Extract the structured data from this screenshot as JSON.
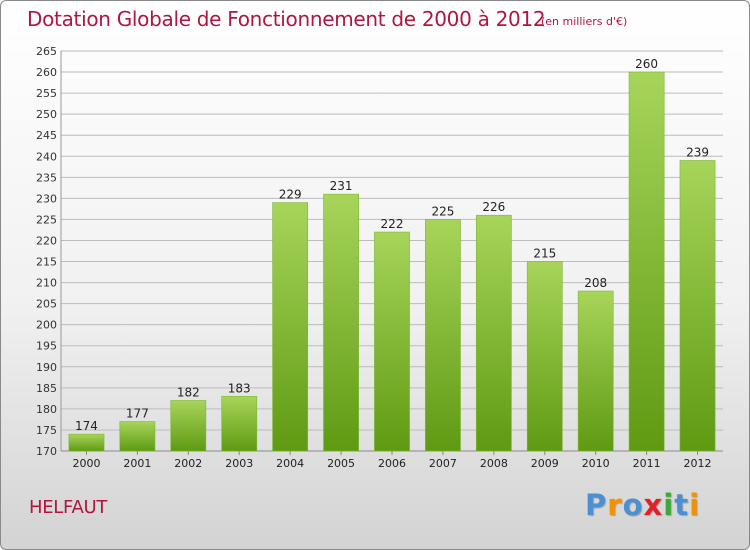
{
  "header": {
    "title": "Dotation Globale de Fonctionnement de 2000 à 2012",
    "unit": "(en milliers d'€)"
  },
  "footer": {
    "place": "HELFAUT",
    "logo_text": "Proxiti",
    "logo_colors": [
      "#4a90d2",
      "#f39200",
      "#4a90d2",
      "#e2202c",
      "#3aa935",
      "#4a90d2",
      "#f39200"
    ]
  },
  "colors": {
    "bar_light": "#a7d55a",
    "bar_dark": "#5f9a12",
    "grid": "#bcbcbc",
    "title": "#b0163f"
  },
  "chart_data": {
    "type": "bar",
    "title": "Dotation Globale de Fonctionnement de 2000 à 2012",
    "subtitle": "(en milliers d'€)",
    "categories": [
      "2000",
      "2001",
      "2002",
      "2003",
      "2004",
      "2005",
      "2006",
      "2007",
      "2008",
      "2009",
      "2010",
      "2011",
      "2012"
    ],
    "values": [
      174,
      177,
      182,
      183,
      229,
      231,
      222,
      225,
      226,
      215,
      208,
      260,
      239
    ],
    "ylim": [
      170,
      265
    ],
    "ytick_step": 5,
    "grid": true,
    "data_labels": true
  }
}
